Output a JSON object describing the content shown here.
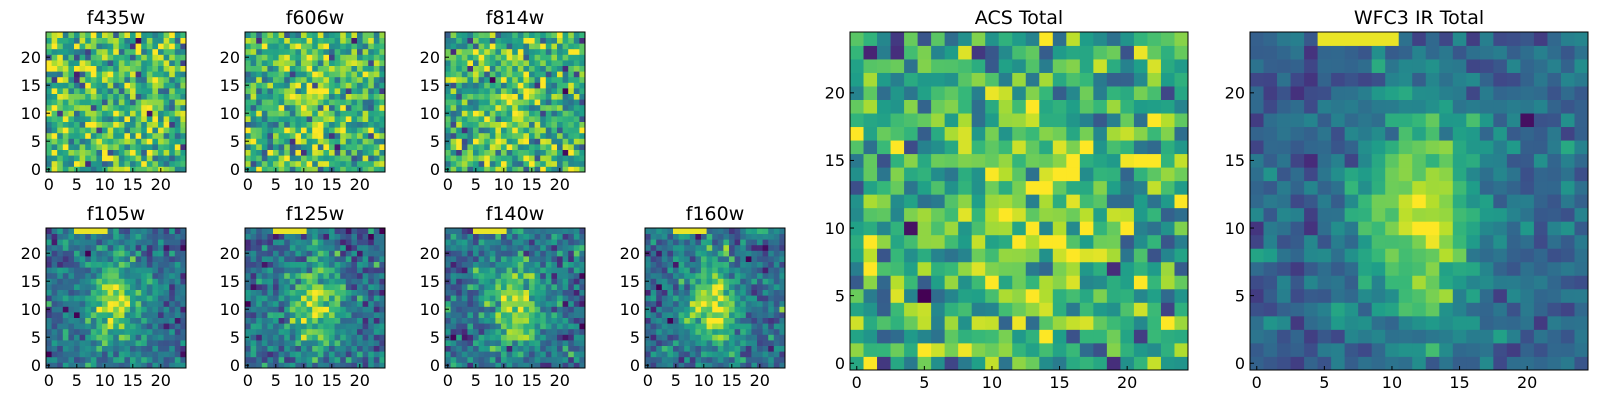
{
  "figure": {
    "background": "#ffffff",
    "colormap": "viridis"
  },
  "chart_data": [
    {
      "type": "heatmap",
      "title": "f435w",
      "seed": 11,
      "pattern": "noise",
      "size": 25,
      "xticks": [
        "0",
        "5",
        "10",
        "15",
        "20"
      ],
      "yticks": [
        "0",
        "5",
        "10",
        "15",
        "20"
      ],
      "xlim": [
        0,
        25
      ],
      "ylim": [
        0,
        25
      ]
    },
    {
      "type": "heatmap",
      "title": "f606w",
      "seed": 22,
      "pattern": "noise_center",
      "size": 25,
      "xticks": [
        "0",
        "5",
        "10",
        "15",
        "20"
      ],
      "yticks": [
        "0",
        "5",
        "10",
        "15",
        "20"
      ],
      "xlim": [
        0,
        25
      ],
      "ylim": [
        0,
        25
      ]
    },
    {
      "type": "heatmap",
      "title": "f814w",
      "seed": 33,
      "pattern": "noise_center",
      "size": 25,
      "xticks": [
        "0",
        "5",
        "10",
        "15",
        "20"
      ],
      "yticks": [
        "0",
        "5",
        "10",
        "15",
        "20"
      ],
      "xlim": [
        0,
        25
      ],
      "ylim": [
        0,
        25
      ]
    },
    {
      "type": "heatmap",
      "title": "f105w",
      "seed": 44,
      "pattern": "galaxy",
      "size": 25,
      "xticks": [
        "0",
        "5",
        "10",
        "15",
        "20"
      ],
      "yticks": [
        "0",
        "5",
        "10",
        "15",
        "20"
      ],
      "xlim": [
        0,
        25
      ],
      "ylim": [
        0,
        25
      ]
    },
    {
      "type": "heatmap",
      "title": "f125w",
      "seed": 55,
      "pattern": "galaxy",
      "size": 25,
      "xticks": [
        "0",
        "5",
        "10",
        "15",
        "20"
      ],
      "yticks": [
        "0",
        "5",
        "10",
        "15",
        "20"
      ],
      "xlim": [
        0,
        25
      ],
      "ylim": [
        0,
        25
      ]
    },
    {
      "type": "heatmap",
      "title": "f140w",
      "seed": 66,
      "pattern": "galaxy",
      "size": 25,
      "xticks": [
        "0",
        "5",
        "10",
        "15",
        "20"
      ],
      "yticks": [
        "0",
        "5",
        "10",
        "15",
        "20"
      ],
      "xlim": [
        0,
        25
      ],
      "ylim": [
        0,
        25
      ]
    },
    {
      "type": "heatmap",
      "title": "f160w",
      "seed": 77,
      "pattern": "galaxy",
      "size": 25,
      "xticks": [
        "0",
        "5",
        "10",
        "15",
        "20"
      ],
      "yticks": [
        "0",
        "5",
        "10",
        "15",
        "20"
      ],
      "xlim": [
        0,
        25
      ],
      "ylim": [
        0,
        25
      ]
    },
    {
      "type": "heatmap",
      "title": "ACS Total",
      "seed": 88,
      "pattern": "noise_center",
      "size": 25,
      "xticks": [
        "0",
        "5",
        "10",
        "15",
        "20"
      ],
      "yticks": [
        "0",
        "5",
        "10",
        "15",
        "20"
      ],
      "xlim": [
        0,
        25
      ],
      "ylim": [
        0,
        25
      ]
    },
    {
      "type": "heatmap",
      "title": "WFC3 IR Total",
      "seed": 99,
      "pattern": "galaxy_smooth",
      "size": 25,
      "xticks": [
        "0",
        "5",
        "10",
        "15",
        "20"
      ],
      "yticks": [
        "0",
        "5",
        "10",
        "15",
        "20"
      ],
      "xlim": [
        0,
        25
      ],
      "ylim": [
        0,
        25
      ]
    }
  ]
}
